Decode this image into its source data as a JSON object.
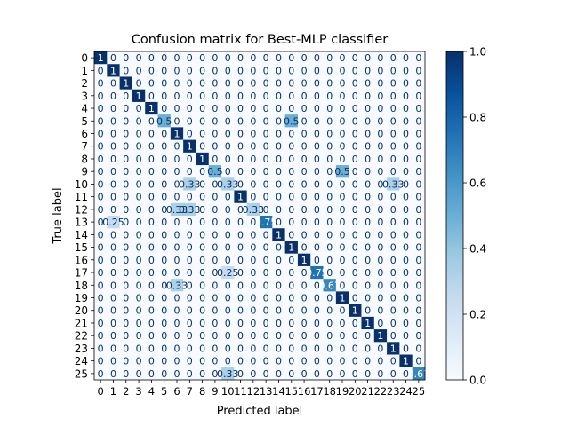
{
  "chart_data": {
    "type": "heatmap",
    "title": "Confusion matrix for Best-MLP classifier",
    "xlabel": "Predicted label",
    "ylabel": "True label",
    "labels": [
      "0",
      "1",
      "2",
      "3",
      "4",
      "5",
      "6",
      "7",
      "8",
      "9",
      "10",
      "11",
      "12",
      "13",
      "14",
      "15",
      "16",
      "17",
      "18",
      "19",
      "20",
      "21",
      "22",
      "23",
      "24",
      "25"
    ],
    "matrix": [
      [
        1,
        0,
        0,
        0,
        0,
        0,
        0,
        0,
        0,
        0,
        0,
        0,
        0,
        0,
        0,
        0,
        0,
        0,
        0,
        0,
        0,
        0,
        0,
        0,
        0,
        0
      ],
      [
        0,
        1,
        0,
        0,
        0,
        0,
        0,
        0,
        0,
        0,
        0,
        0,
        0,
        0,
        0,
        0,
        0,
        0,
        0,
        0,
        0,
        0,
        0,
        0,
        0,
        0
      ],
      [
        0,
        0,
        1,
        0,
        0,
        0,
        0,
        0,
        0,
        0,
        0,
        0,
        0,
        0,
        0,
        0,
        0,
        0,
        0,
        0,
        0,
        0,
        0,
        0,
        0,
        0
      ],
      [
        0,
        0,
        0,
        1,
        0,
        0,
        0,
        0,
        0,
        0,
        0,
        0,
        0,
        0,
        0,
        0,
        0,
        0,
        0,
        0,
        0,
        0,
        0,
        0,
        0,
        0
      ],
      [
        0,
        0,
        0,
        0,
        1,
        0,
        0,
        0,
        0,
        0,
        0,
        0,
        0,
        0,
        0,
        0,
        0,
        0,
        0,
        0,
        0,
        0,
        0,
        0,
        0,
        0
      ],
      [
        0,
        0,
        0,
        0,
        0,
        0.5,
        0,
        0,
        0,
        0,
        0,
        0,
        0,
        0,
        0,
        0.5,
        0,
        0,
        0,
        0,
        0,
        0,
        0,
        0,
        0,
        0
      ],
      [
        0,
        0,
        0,
        0,
        0,
        0,
        1,
        0,
        0,
        0,
        0,
        0,
        0,
        0,
        0,
        0,
        0,
        0,
        0,
        0,
        0,
        0,
        0,
        0,
        0,
        0
      ],
      [
        0,
        0,
        0,
        0,
        0,
        0,
        0,
        1,
        0,
        0,
        0,
        0,
        0,
        0,
        0,
        0,
        0,
        0,
        0,
        0,
        0,
        0,
        0,
        0,
        0,
        0
      ],
      [
        0,
        0,
        0,
        0,
        0,
        0,
        0,
        0,
        1,
        0,
        0,
        0,
        0,
        0,
        0,
        0,
        0,
        0,
        0,
        0,
        0,
        0,
        0,
        0,
        0,
        0
      ],
      [
        0,
        0,
        0,
        0,
        0,
        0,
        0,
        0,
        0,
        0.5,
        0,
        0,
        0,
        0,
        0,
        0,
        0,
        0,
        0,
        0.5,
        0,
        0,
        0,
        0,
        0,
        0
      ],
      [
        0,
        0,
        0,
        0,
        0,
        0,
        0,
        0.33,
        0,
        0,
        0.33,
        0,
        0,
        0,
        0,
        0,
        0,
        0,
        0,
        0,
        0,
        0,
        0,
        0.33,
        0,
        0
      ],
      [
        0,
        0,
        0,
        0,
        0,
        0,
        0,
        0,
        0,
        0,
        0,
        1,
        0,
        0,
        0,
        0,
        0,
        0,
        0,
        0,
        0,
        0,
        0,
        0,
        0,
        0
      ],
      [
        0,
        0,
        0,
        0,
        0,
        0,
        0.33,
        0.33,
        0,
        0,
        0,
        0,
        0.33,
        0,
        0,
        0,
        0,
        0,
        0,
        0,
        0,
        0,
        0,
        0,
        0,
        0
      ],
      [
        0,
        0.25,
        0,
        0,
        0,
        0,
        0,
        0,
        0,
        0,
        0,
        0,
        0,
        0.75,
        0,
        0,
        0,
        0,
        0,
        0,
        0,
        0,
        0,
        0,
        0,
        0
      ],
      [
        0,
        0,
        0,
        0,
        0,
        0,
        0,
        0,
        0,
        0,
        0,
        0,
        0,
        0,
        1,
        0,
        0,
        0,
        0,
        0,
        0,
        0,
        0,
        0,
        0,
        0
      ],
      [
        0,
        0,
        0,
        0,
        0,
        0,
        0,
        0,
        0,
        0,
        0,
        0,
        0,
        0,
        0,
        1,
        0,
        0,
        0,
        0,
        0,
        0,
        0,
        0,
        0,
        0
      ],
      [
        0,
        0,
        0,
        0,
        0,
        0,
        0,
        0,
        0,
        0,
        0,
        0,
        0,
        0,
        0,
        0,
        1,
        0,
        0,
        0,
        0,
        0,
        0,
        0,
        0,
        0
      ],
      [
        0,
        0,
        0,
        0,
        0,
        0,
        0,
        0,
        0,
        0,
        0.25,
        0,
        0,
        0,
        0,
        0,
        0,
        0.75,
        0,
        0,
        0,
        0,
        0,
        0,
        0,
        0
      ],
      [
        0,
        0,
        0,
        0,
        0,
        0,
        0.33,
        0,
        0,
        0,
        0,
        0,
        0,
        0,
        0,
        0,
        0,
        0,
        0.67,
        0,
        0,
        0,
        0,
        0,
        0,
        0
      ],
      [
        0,
        0,
        0,
        0,
        0,
        0,
        0,
        0,
        0,
        0,
        0,
        0,
        0,
        0,
        0,
        0,
        0,
        0,
        0,
        1,
        0,
        0,
        0,
        0,
        0,
        0
      ],
      [
        0,
        0,
        0,
        0,
        0,
        0,
        0,
        0,
        0,
        0,
        0,
        0,
        0,
        0,
        0,
        0,
        0,
        0,
        0,
        0,
        1,
        0,
        0,
        0,
        0,
        0
      ],
      [
        0,
        0,
        0,
        0,
        0,
        0,
        0,
        0,
        0,
        0,
        0,
        0,
        0,
        0,
        0,
        0,
        0,
        0,
        0,
        0,
        0,
        1,
        0,
        0,
        0,
        0
      ],
      [
        0,
        0,
        0,
        0,
        0,
        0,
        0,
        0,
        0,
        0,
        0,
        0,
        0,
        0,
        0,
        0,
        0,
        0,
        0,
        0,
        0,
        0,
        1,
        0,
        0,
        0
      ],
      [
        0,
        0,
        0,
        0,
        0,
        0,
        0,
        0,
        0,
        0,
        0,
        0,
        0,
        0,
        0,
        0,
        0,
        0,
        0,
        0,
        0,
        0,
        0,
        1,
        0,
        0
      ],
      [
        0,
        0,
        0,
        0,
        0,
        0,
        0,
        0,
        0,
        0,
        0,
        0,
        0,
        0,
        0,
        0,
        0,
        0,
        0,
        0,
        0,
        0,
        0,
        0,
        1,
        0
      ],
      [
        0,
        0,
        0,
        0,
        0,
        0,
        0,
        0,
        0,
        0,
        0.33,
        0,
        0,
        0,
        0,
        0,
        0,
        0,
        0,
        0,
        0,
        0,
        0,
        0,
        0,
        0.67
      ]
    ],
    "colorbar": {
      "colormap": "Blues",
      "range": [
        0,
        1
      ],
      "ticks": [
        "0.0",
        "0.2",
        "0.4",
        "0.6",
        "0.8",
        "1.0"
      ]
    },
    "grid": false
  }
}
